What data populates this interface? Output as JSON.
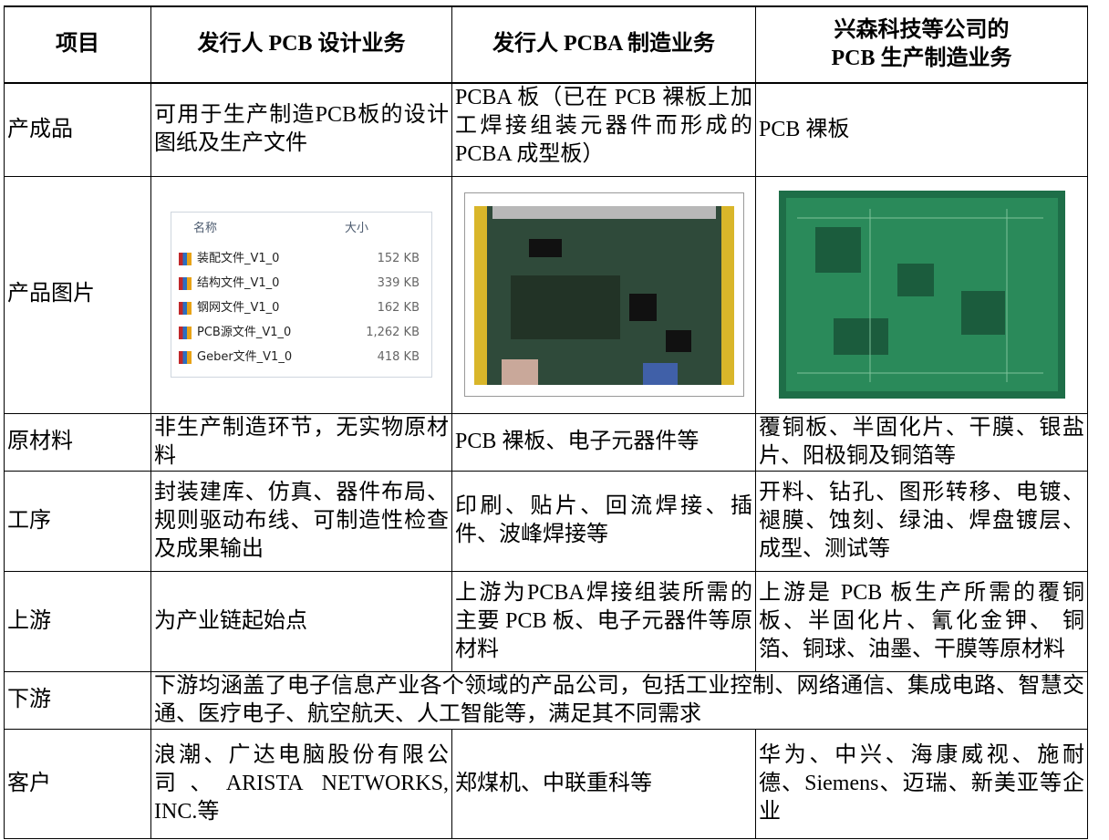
{
  "table": {
    "header": [
      [
        "项目"
      ],
      [
        "发行人 PCB 设计业务"
      ],
      [
        "发行人 PCBA 制造业务"
      ],
      [
        "兴森科技等公司的",
        "PCB 生产制造业务"
      ]
    ],
    "rows": [
      [
        "产成品",
        "可用于生产制造PCB板的设计图纸及生产文件",
        "PCBA 板（已在 PCB 裸板上加工焊接组装元器件而形成的 PCBA 成型板）",
        "PCB 裸板"
      ],
      [
        "产品图片"
      ],
      [
        "原材料",
        "非生产制造环节，无实物原材料",
        "PCB 裸板、电子元器件等",
        "覆铜板、半固化片、干膜、银盐片、阳极铜及铜箔等"
      ],
      [
        "工序",
        "封装建库、仿真、器件布局、规则驱动布线、可制造性检查及成果输出",
        "印刷、贴片、回流焊接、插件、波峰焊接等",
        "开料、钻孔、图形转移、电镀、褪膜、蚀刻、绿油、焊盘镀层、成型、测试等"
      ],
      [
        "上游",
        "为产业链起始点",
        "上游为PCBA焊接组装所需的主要 PCB 板、电子元器件等原材料",
        "上游是 PCB 板生产所需的覆铜板、半固化片、氰化金钾、 铜箔、铜球、油墨、干膜等原材料"
      ],
      [
        "下游",
        "下游均涵盖了电子信息产业各个领域的产品公司，包括工业控制、网络通信、集成电路、智慧交通、医疗电子、航空航天、人工智能等，满足其不同需求"
      ],
      [
        "客户",
        "浪潮、广达电脑股份有限公司、ARISTA NETWORKS, INC.等",
        "郑煤机、中联重科等",
        "华为、中兴、海康威视、施耐德、Siemens、迈瑞、新美亚等企业"
      ]
    ],
    "file_list": {
      "headers": [
        "名称",
        "大小"
      ],
      "files": [
        [
          "装配文件_V1_0",
          "152 KB"
        ],
        [
          "结构文件_V1_0",
          "339 KB"
        ],
        [
          "钢网文件_V1_0",
          "162 KB"
        ],
        [
          "PCB源文件_V1_0",
          "1,262 KB"
        ],
        [
          "Geber文件_V1_0",
          "418 KB"
        ]
      ]
    }
  }
}
